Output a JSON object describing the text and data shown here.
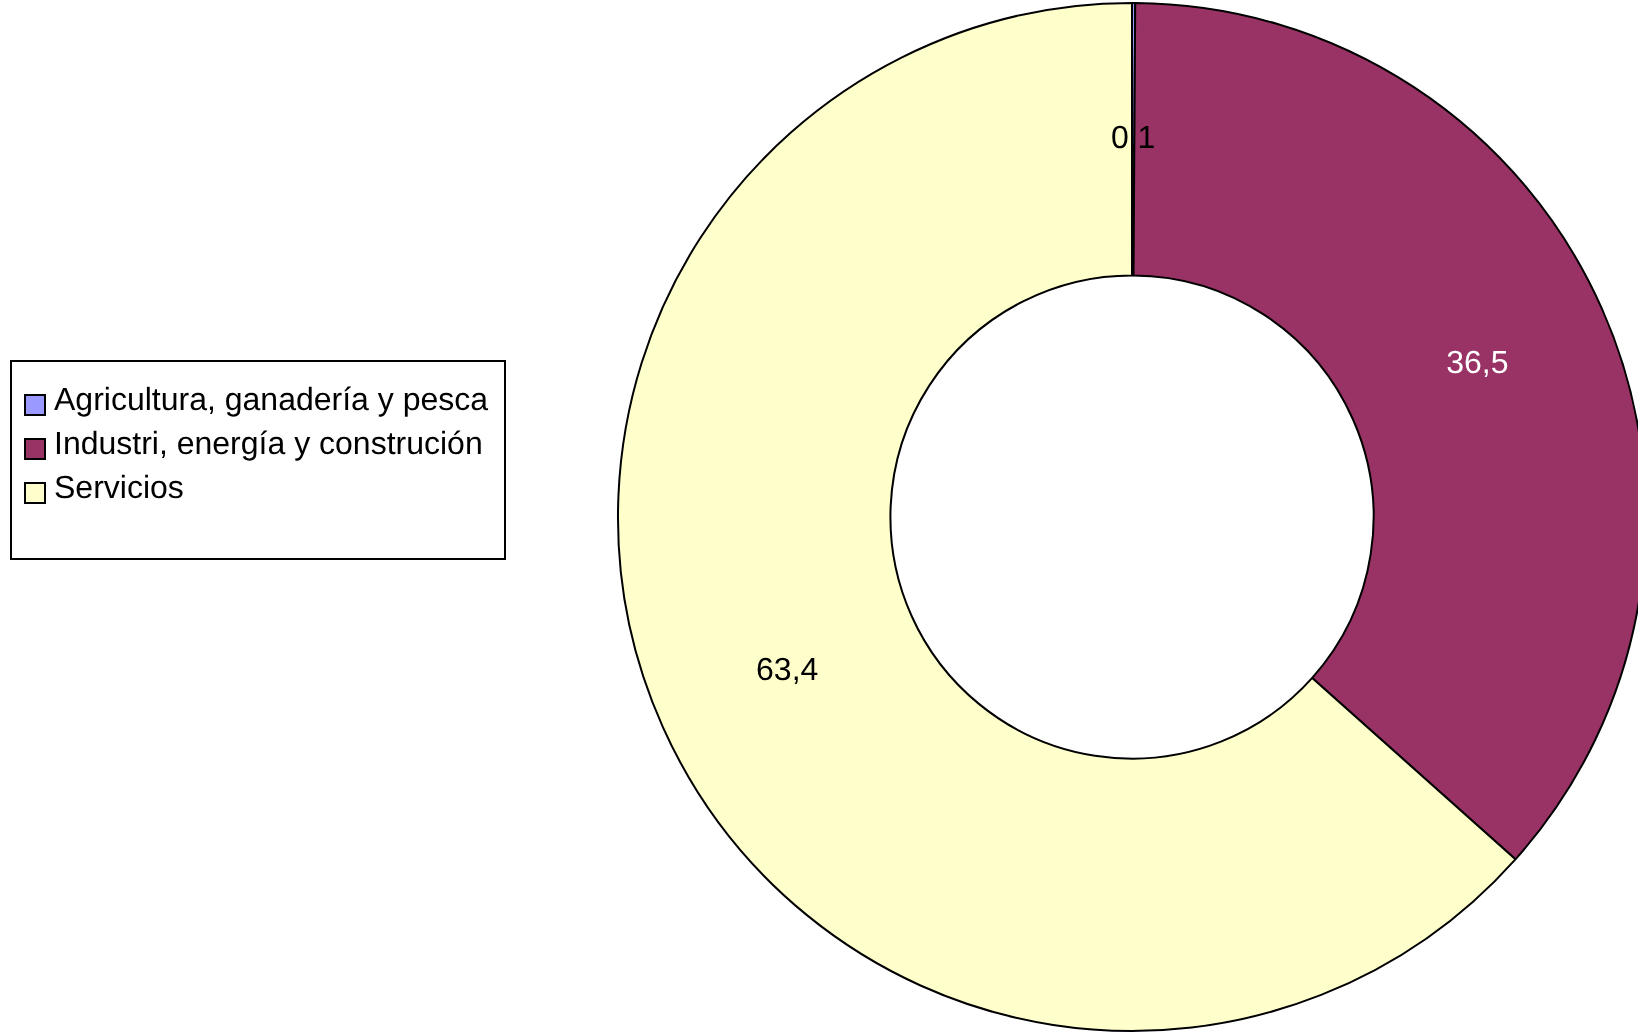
{
  "chart_data": {
    "type": "donut",
    "categories": [
      "Agricultura, ganadería y pesca",
      "Industri, energía y construción",
      "Servicios"
    ],
    "values": [
      0.1,
      36.5,
      63.4
    ],
    "colors": [
      "#9999ff",
      "#993366",
      "#ffffcc"
    ],
    "value_labels": [
      "0,1",
      "36,5",
      "63,4"
    ],
    "legend": "left"
  }
}
